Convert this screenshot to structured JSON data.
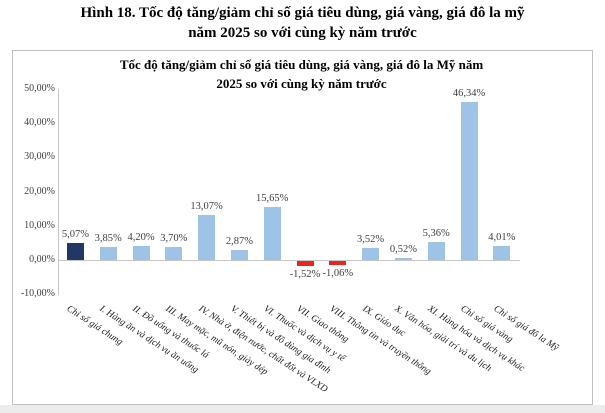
{
  "figure_title": {
    "line1": "Hình 18. Tốc độ tăng/giảm chỉ số giá tiêu dùng, giá vàng, giá đô la mỹ",
    "line2": "năm 2025 so với cùng kỳ năm trước"
  },
  "chart_data": {
    "type": "bar",
    "title": "Tốc độ tăng/giảm chỉ số giá tiêu dùng, giá vàng, giá đô la Mỹ năm 2025 so với cùng kỳ năm trước",
    "title_line1": "Tốc độ tăng/giảm chỉ số giá tiêu dùng, giá vàng, giá đô la Mỹ năm",
    "title_line2": "2025 so với cùng kỳ năm trước",
    "categories": [
      "Chỉ số giá chung",
      "I. Hàng ăn và dịch vụ ăn uống",
      "II. Đồ uống và thuốc lá",
      "III. May mặc, mũ nón, giày dép",
      "IV. Nhà ở, điện nước, chất đốt và VLXD",
      "V. Thiết bị và đồ dùng gia đình",
      "VI. Thuốc và dịch vụ y tế",
      "VII. Giao thông",
      "VIII. Thông tin và truyền thông",
      "IX. Giáo dục",
      "X. Văn hóa, giải trí và du lịch",
      "XI. Hàng hóa và dịch vụ khác",
      "Chỉ số giá vàng",
      "Chỉ số giá đô la Mỹ"
    ],
    "values": [
      5.07,
      3.85,
      4.2,
      3.7,
      13.07,
      2.87,
      15.65,
      -1.52,
      -1.06,
      3.52,
      0.52,
      5.36,
      46.34,
      4.01
    ],
    "value_labels": [
      "5,07%",
      "3,85%",
      "4,20%",
      "3,70%",
      "13,07%",
      "2,87%",
      "15,65%",
      "-1,52%",
      "-1,06%",
      "3,52%",
      "0,52%",
      "5,36%",
      "46,34%",
      "4,01%"
    ],
    "xlabel": "",
    "ylabel": "",
    "ylim": [
      -10,
      50
    ],
    "ytick_step": 10,
    "y_tick_labels": [
      "50,00%",
      "40,00%",
      "30,00%",
      "20,00%",
      "10,00%",
      "0,00%",
      "-10,00%"
    ],
    "y_tick_values": [
      50,
      40,
      30,
      20,
      10,
      0,
      -10
    ],
    "grid": false,
    "legend": false,
    "colors": {
      "bar_default": "#9DC3E6",
      "bar_highlight": "#1F3864",
      "bar_negative": "#E8251E",
      "axis_line": "#C6C6C6",
      "label_text": "#3F3F3F"
    }
  }
}
